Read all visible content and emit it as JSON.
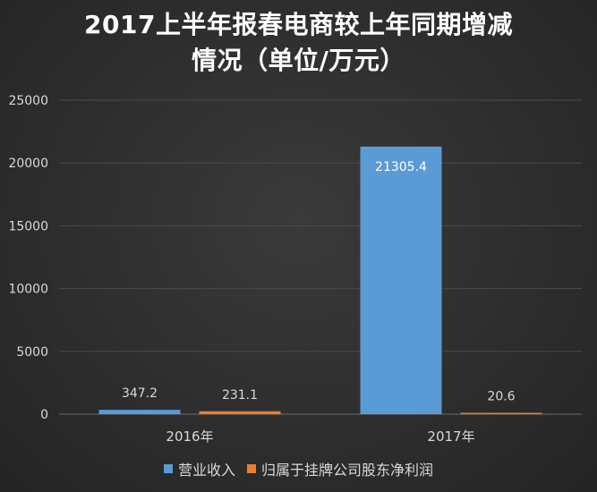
{
  "chart_data": {
    "type": "bar",
    "title_lines": [
      "2017上半年报春电商较上年同期增减",
      "情况（单位/万元）"
    ],
    "categories": [
      "2016年",
      "2017年"
    ],
    "series": [
      {
        "name": "营业收入",
        "values": [
          347.2,
          21305.4
        ],
        "labels": [
          "347.2",
          "21305.4"
        ],
        "color": "#5b9bd5"
      },
      {
        "name": "归属于挂牌公司股东净利润",
        "values": [
          231.1,
          20.6
        ],
        "labels": [
          "231.1",
          "20.6"
        ],
        "color": "#ed7d31"
      }
    ],
    "ylim": [
      0,
      25000
    ],
    "yticks": [
      0,
      5000,
      10000,
      15000,
      20000,
      25000
    ],
    "ytick_labels": [
      "0",
      "5000",
      "10000",
      "15000",
      "20000",
      "25000"
    ],
    "grid": true,
    "legend_position": "bottom",
    "colors": {
      "background": "#2e2e2e",
      "grid": "#4a4a4a",
      "text": "#d9d9d9",
      "title": "#ffffff"
    }
  }
}
